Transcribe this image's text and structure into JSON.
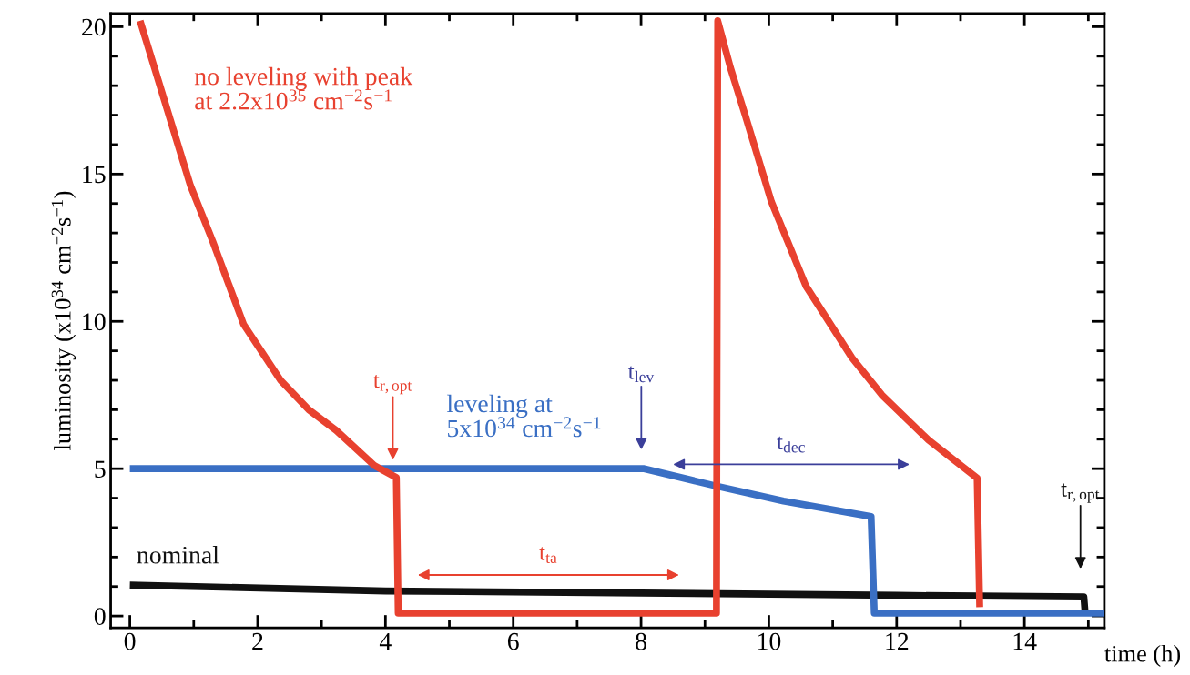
{
  "chart_data": {
    "type": "line",
    "ylabel": "luminosity (x10$^{34}$ cm$^{−2}$s$^{−1}$)",
    "xlabel": "time (h)",
    "xlim": [
      -0.3,
      15.25
    ],
    "xticks": [
      0,
      {
        "value": 1,
        "label": null
      },
      2,
      {
        "value": 3,
        "label": null
      },
      4,
      {
        "value": 5,
        "label": null
      },
      6,
      {
        "value": 7,
        "label": null
      },
      8,
      {
        "value": 9,
        "label": null
      },
      10,
      {
        "value": 11,
        "label": null
      },
      12,
      {
        "value": 13,
        "label": null
      },
      14,
      {
        "value": 15,
        "label": null
      }
    ],
    "ylim": [
      -0.4,
      20.45
    ],
    "yticks": [
      0,
      {
        "value": 1,
        "label": null
      },
      {
        "value": 2,
        "label": null
      },
      {
        "value": 3,
        "label": null
      },
      {
        "value": 4,
        "label": null
      },
      5,
      {
        "value": 6,
        "label": null
      },
      {
        "value": 7,
        "label": null
      },
      {
        "value": 8,
        "label": null
      },
      {
        "value": 9,
        "label": null
      },
      10,
      {
        "value": 11,
        "label": null
      },
      {
        "value": 12,
        "label": null
      },
      {
        "value": 13,
        "label": null
      },
      {
        "value": 14,
        "label": null
      },
      15,
      {
        "value": 16,
        "label": null
      },
      {
        "value": 17,
        "label": null
      },
      {
        "value": 18,
        "label": null
      },
      {
        "value": 19,
        "label": null
      },
      20
    ],
    "line_style": "solid",
    "series": [
      {
        "name": "nominal",
        "color": "#111111",
        "x": [
          0,
          4,
          8,
          12,
          14.93,
          14.95
        ],
        "values": [
          1.05,
          0.85,
          0.78,
          0.7,
          0.65,
          0.1
        ]
      },
      {
        "name": "leveling at\n5x10$^{34}$ cm$^{−2}$s$^{−1}$",
        "color": "#3a6fc4",
        "x": [
          0,
          8.05,
          9.14,
          10.23,
          11.6,
          11.65,
          15.25
        ],
        "values": [
          5.0,
          5.0,
          4.43,
          3.9,
          3.38,
          0.1,
          0.1
        ]
      },
      {
        "name": "no leveling with peak\nat 2.2x10$^{35}$ cm$^{−2}$s$^{−1}$",
        "color": "#e8412f",
        "x": [
          0.16,
          0.4,
          0.64,
          0.95,
          1.3,
          1.78,
          2.36,
          2.8,
          3.23,
          3.83,
          4.17,
          4.2,
          9.18,
          9.2,
          9.4,
          9.63,
          10.04,
          10.58,
          11.3,
          11.77,
          12.5,
          13.26,
          13.3
        ],
        "values": [
          20.2,
          18.5,
          16.8,
          14.6,
          12.7,
          9.9,
          8.0,
          7.0,
          6.3,
          5.1,
          4.7,
          0.1,
          0.1,
          20.2,
          18.6,
          17.0,
          14.06,
          11.2,
          8.77,
          7.5,
          5.97,
          4.68,
          0.3
        ]
      }
    ],
    "annotations": [
      "t$_{r,opt}$",
      "t$_{lev}$",
      "t$_{r,opt}$",
      "t$_{ta}$",
      "t$_{dec}$"
    ]
  }
}
